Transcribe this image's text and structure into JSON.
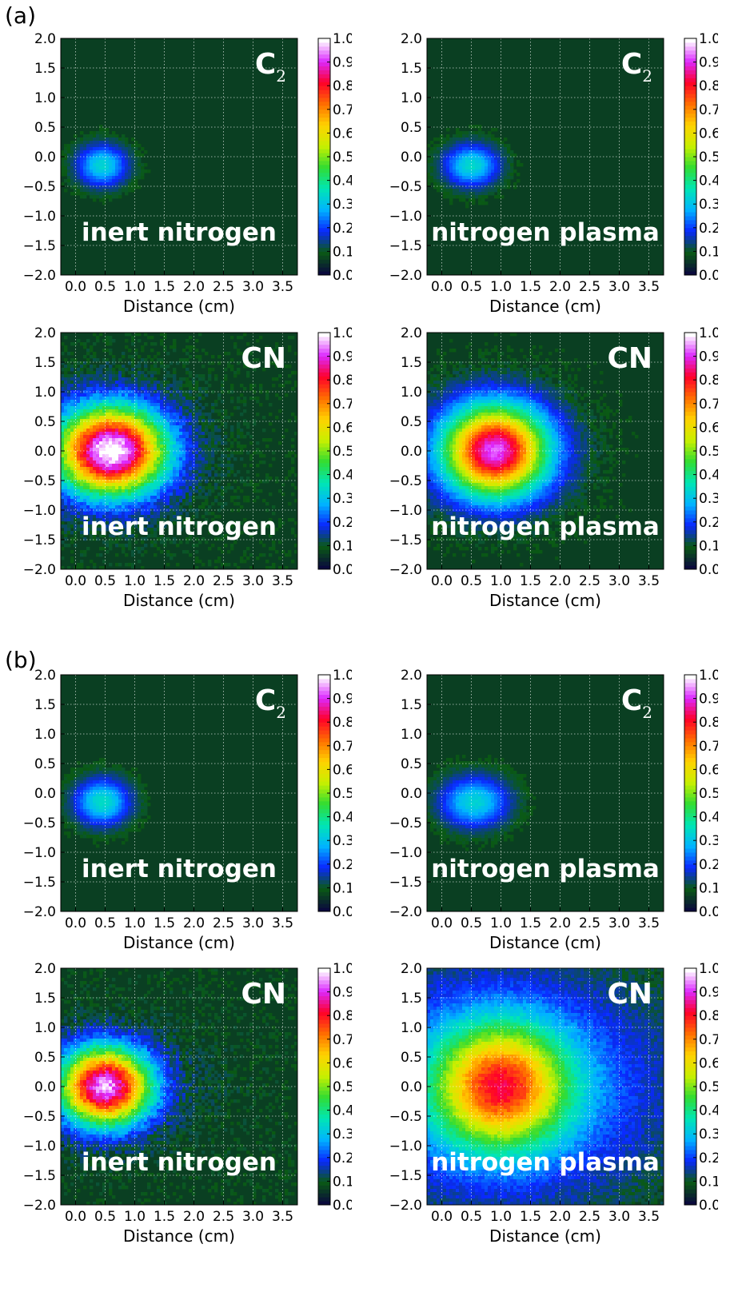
{
  "sections": [
    {
      "label": "(a)"
    },
    {
      "label": "(b)"
    }
  ],
  "colorbar": {
    "ticks": [
      "0.0",
      "0.1",
      "0.2",
      "0.3",
      "0.4",
      "0.5",
      "0.6",
      "0.7",
      "0.8",
      "0.9",
      "1.0"
    ],
    "colormap": "nipy_spectral",
    "stops": [
      "#0a0a3c",
      "#0a5a14",
      "#0a28ff",
      "#00b4ff",
      "#00e6b4",
      "#32dc32",
      "#c8f000",
      "#ffd200",
      "#ff6e00",
      "#ff0028",
      "#dc28ff",
      "#ffffff"
    ]
  },
  "axes_common": {
    "xlabel": "Distance (cm)",
    "x_ticks": [
      "0.0",
      "0.5",
      "1.0",
      "1.5",
      "2.0",
      "2.5",
      "3.0",
      "3.5"
    ],
    "y_ticks": [
      "2.0",
      "1.5",
      "1.0",
      "0.5",
      "0.0",
      "−0.5",
      "−1.0",
      "−1.5",
      "−2.0"
    ],
    "xlim": [
      -0.25,
      3.75
    ],
    "ylim": [
      -2.0,
      2.0
    ],
    "grid": true,
    "grid_style": "white dotted"
  },
  "chart_data": [
    {
      "type": "heatmap",
      "section": "(a)",
      "species": "C",
      "species_sub": "2",
      "condition": "inert nitrogen",
      "xlabel": "Distance (cm)",
      "colorbar_range": [
        0,
        1
      ],
      "plume": {
        "center": [
          0.45,
          -0.15
        ],
        "radius_x": 0.55,
        "radius_y": 0.45,
        "halo_x": 0.9,
        "halo_y": 0.75,
        "peak": 0.22,
        "halo_level": 0.05,
        "noise": 0.02
      }
    },
    {
      "type": "heatmap",
      "section": "(a)",
      "species": "C",
      "species_sub": "2",
      "condition": "nitrogen plasma",
      "xlabel": "Distance (cm)",
      "colorbar_range": [
        0,
        1
      ],
      "plume": {
        "center": [
          0.5,
          -0.15
        ],
        "radius_x": 0.6,
        "radius_y": 0.45,
        "halo_x": 0.95,
        "halo_y": 0.8,
        "peak": 0.23,
        "halo_level": 0.05,
        "noise": 0.02
      }
    },
    {
      "type": "heatmap",
      "section": "(a)",
      "species": "CN",
      "species_sub": "",
      "condition": "inert nitrogen",
      "xlabel": "Distance (cm)",
      "colorbar_range": [
        0,
        1
      ],
      "plume": {
        "center": [
          0.6,
          0.0
        ],
        "radius_x": 1.25,
        "radius_y": 1.0,
        "halo_x": 2.05,
        "halo_y": 1.55,
        "peak": 0.9,
        "halo_level": 0.07,
        "noise": 0.07
      }
    },
    {
      "type": "heatmap",
      "section": "(a)",
      "species": "CN",
      "species_sub": "",
      "condition": "nitrogen plasma",
      "xlabel": "Distance (cm)",
      "colorbar_range": [
        0,
        1
      ],
      "plume": {
        "center": [
          0.9,
          0.0
        ],
        "radius_x": 1.2,
        "radius_y": 1.05,
        "halo_x": 2.1,
        "halo_y": 1.55,
        "peak": 0.8,
        "halo_level": 0.07,
        "noise": 0.04
      }
    },
    {
      "type": "heatmap",
      "section": "(b)",
      "species": "C",
      "species_sub": "2",
      "condition": "inert nitrogen",
      "xlabel": "Distance (cm)",
      "colorbar_range": [
        0,
        1
      ],
      "plume": {
        "center": [
          0.45,
          -0.15
        ],
        "radius_x": 0.6,
        "radius_y": 0.5,
        "halo_x": 1.0,
        "halo_y": 0.85,
        "peak": 0.24,
        "halo_level": 0.05,
        "noise": 0.02
      }
    },
    {
      "type": "heatmap",
      "section": "(b)",
      "species": "C",
      "species_sub": "2",
      "condition": "nitrogen plasma",
      "xlabel": "Distance (cm)",
      "colorbar_range": [
        0,
        1
      ],
      "plume": {
        "center": [
          0.55,
          -0.15
        ],
        "radius_x": 0.75,
        "radius_y": 0.55,
        "halo_x": 1.15,
        "halo_y": 0.9,
        "peak": 0.22,
        "halo_level": 0.05,
        "noise": 0.02
      }
    },
    {
      "type": "heatmap",
      "section": "(b)",
      "species": "CN",
      "species_sub": "",
      "condition": "inert nitrogen",
      "xlabel": "Distance (cm)",
      "colorbar_range": [
        0,
        1
      ],
      "plume": {
        "center": [
          0.5,
          0.0
        ],
        "radius_x": 1.05,
        "radius_y": 0.9,
        "halo_x": 2.3,
        "halo_y": 1.3,
        "peak": 0.85,
        "halo_level": 0.06,
        "noise": 0.08
      }
    },
    {
      "type": "heatmap",
      "section": "(b)",
      "species": "CN",
      "species_sub": "",
      "condition": "nitrogen plasma",
      "xlabel": "Distance (cm)",
      "colorbar_range": [
        0,
        1
      ],
      "plume": {
        "center": [
          1.0,
          0.0
        ],
        "radius_x": 1.5,
        "radius_y": 1.4,
        "halo_x": 3.6,
        "halo_y": 2.5,
        "peak": 0.55,
        "halo_level": 0.22,
        "noise": 0.05
      }
    }
  ]
}
